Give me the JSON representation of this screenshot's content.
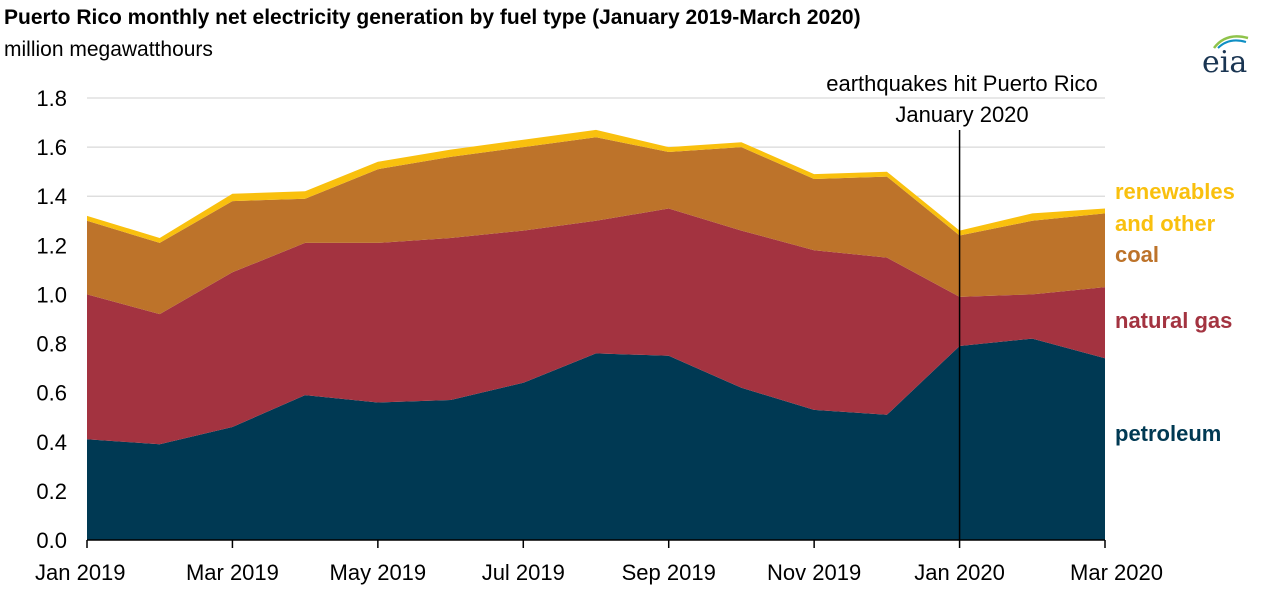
{
  "header": {
    "title": "Puerto Rico monthly net electricity generation by fuel type (January 2019-March 2020)",
    "subtitle": "million megawatthours"
  },
  "logo": {
    "text": "eia",
    "icon": "eia-logo-icon"
  },
  "chart_data": {
    "type": "area",
    "stacked": true,
    "title": "Puerto Rico monthly net electricity generation by fuel type (January 2019-March 2020)",
    "ylabel": "million megawatthours",
    "xlabel": "",
    "x": [
      "2019-01",
      "2019-02",
      "2019-03",
      "2019-04",
      "2019-05",
      "2019-06",
      "2019-07",
      "2019-08",
      "2019-09",
      "2019-10",
      "2019-11",
      "2019-12",
      "2020-01",
      "2020-02",
      "2020-03"
    ],
    "x_tick_labels": [
      "Jan 2019",
      "Mar 2019",
      "May 2019",
      "Jul 2019",
      "Sep 2019",
      "Nov 2019",
      "Jan 2020",
      "Mar 2020"
    ],
    "ylim": [
      0,
      1.8
    ],
    "y_ticks": [
      "0.0",
      "0.2",
      "0.4",
      "0.6",
      "0.8",
      "1.0",
      "1.2",
      "1.4",
      "1.6",
      "1.8"
    ],
    "grid": "horizontal",
    "series": [
      {
        "name": "petroleum",
        "label_lines": [
          "petroleum"
        ],
        "color": "#003953",
        "values": [
          0.41,
          0.39,
          0.46,
          0.59,
          0.56,
          0.57,
          0.64,
          0.76,
          0.75,
          0.62,
          0.53,
          0.51,
          0.79,
          0.82,
          0.74
        ]
      },
      {
        "name": "natural gas",
        "label_lines": [
          "natural gas"
        ],
        "color": "#a33340",
        "values": [
          0.59,
          0.53,
          0.63,
          0.62,
          0.65,
          0.66,
          0.62,
          0.54,
          0.6,
          0.64,
          0.65,
          0.64,
          0.2,
          0.18,
          0.29
        ]
      },
      {
        "name": "coal",
        "label_lines": [
          "coal"
        ],
        "color": "#bd732a",
        "values": [
          0.3,
          0.29,
          0.29,
          0.18,
          0.3,
          0.33,
          0.34,
          0.34,
          0.23,
          0.34,
          0.29,
          0.33,
          0.25,
          0.3,
          0.3
        ]
      },
      {
        "name": "renewables and other",
        "label_lines": [
          "renewables",
          "and other"
        ],
        "color": "#f9c00e",
        "values": [
          0.02,
          0.02,
          0.03,
          0.03,
          0.03,
          0.03,
          0.03,
          0.03,
          0.02,
          0.02,
          0.02,
          0.02,
          0.02,
          0.03,
          0.02
        ]
      }
    ],
    "annotation": {
      "lines": [
        "earthquakes hit Puerto Rico",
        "January 2020"
      ],
      "x": "2020-01"
    }
  }
}
